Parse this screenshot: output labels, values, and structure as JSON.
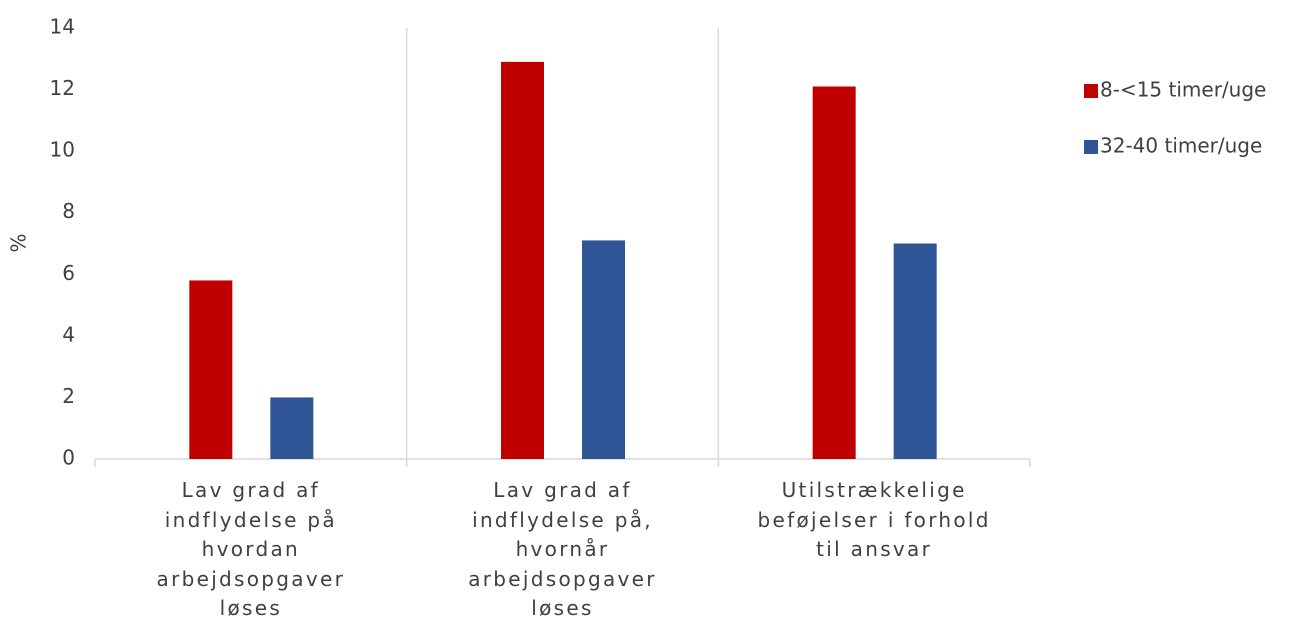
{
  "chart_data": {
    "type": "bar",
    "y_label": "%",
    "categories": [
      "Lav grad af indflydelse på hvordan arbejdsopgaver løses",
      "Lav grad af indflydelse på, hvornår arbejdsopgaver løses",
      "Utilstrækkelige beføjelser i forhold til ansvar"
    ],
    "series": [
      {
        "name": "8-<15 timer/uge",
        "color": "#c00000",
        "values": [
          5.8,
          12.9,
          12.1
        ]
      },
      {
        "name": "32-40 timer/uge",
        "color": "#2f5597",
        "values": [
          2.0,
          7.1,
          7.0
        ]
      }
    ],
    "ylim": [
      0,
      14
    ],
    "yticks": [
      0,
      2,
      4,
      6,
      8,
      10,
      12,
      14
    ],
    "grid": false,
    "legend": "right"
  }
}
